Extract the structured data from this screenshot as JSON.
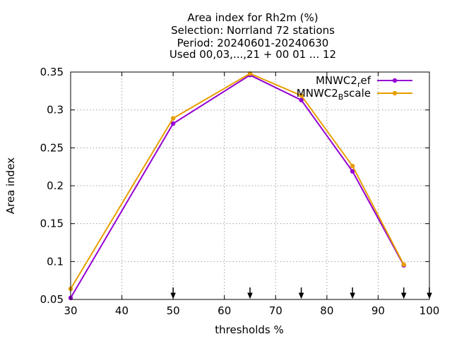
{
  "chart_data": {
    "type": "line",
    "title_lines": [
      "Area index  for Rh2m (%)",
      "Selection: Norrland     72 stations",
      "Period: 20240601-20240630",
      "Used 00,03,...,21 + 00 01 ... 12"
    ],
    "xlabel": "thresholds %",
    "ylabel": "Area index",
    "xlim": [
      30,
      100
    ],
    "ylim": [
      0.05,
      0.35
    ],
    "xticks": [
      30,
      40,
      50,
      60,
      70,
      80,
      90,
      100
    ],
    "yticks": [
      0.05,
      0.1,
      0.15,
      0.2,
      0.25,
      0.3,
      0.35
    ],
    "ytick_labels": [
      "0.05",
      "0.1",
      "0.15",
      "0.2",
      "0.25",
      "0.3",
      "0.35"
    ],
    "grid": true,
    "legend_position": "top-right",
    "series": [
      {
        "name_main": "MNWC2",
        "name_sub": "r",
        "name_tail": "ef",
        "color": "#9400d3",
        "x": [
          30,
          50,
          65,
          75,
          85,
          95
        ],
        "y": [
          0.052,
          0.282,
          0.346,
          0.313,
          0.219,
          0.095
        ]
      },
      {
        "name_main": "MNWC2",
        "name_sub": "B",
        "name_tail": "scale",
        "color": "#e69f00",
        "x": [
          30,
          50,
          65,
          75,
          85,
          95
        ],
        "y": [
          0.064,
          0.289,
          0.348,
          0.319,
          0.226,
          0.096
        ]
      }
    ],
    "threshold_arrows_x": [
      50,
      65,
      75,
      85,
      95,
      100
    ]
  }
}
